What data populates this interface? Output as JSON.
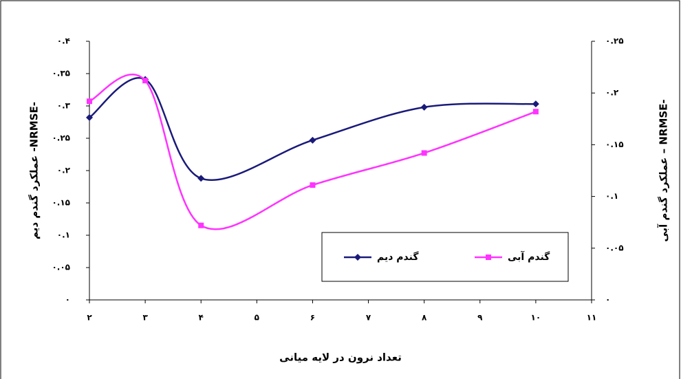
{
  "chart_data": {
    "type": "line",
    "x_label": "تعداد نرون در لایه میانی",
    "y_label": "عملکرد گندم دیم -NRMSE-",
    "y2_label": "عملکرد گندم آبی – NRMSE-",
    "x": [
      2,
      3,
      4,
      6,
      8,
      10
    ],
    "series": [
      {
        "name": "گندم دیم",
        "color": "#1a1a7a",
        "marker": "diamond",
        "values": [
          0.282,
          0.341,
          0.188,
          0.247,
          0.298,
          0.303
        ]
      },
      {
        "name": "گندم آبی",
        "color": "#ff33ff",
        "marker": "square",
        "axis": "y2",
        "values": [
          0.192,
          0.212,
          0.072,
          0.111,
          0.142,
          0.182
        ]
      }
    ],
    "xlim": [
      2,
      11
    ],
    "xticks": [
      {
        "value": 2,
        "label": "۲"
      },
      {
        "value": 3,
        "label": "۳"
      },
      {
        "value": 4,
        "label": "۴"
      },
      {
        "value": 5,
        "label": "۵"
      },
      {
        "value": 6,
        "label": "۶"
      },
      {
        "value": 7,
        "label": "۷"
      },
      {
        "value": 8,
        "label": "۸"
      },
      {
        "value": 9,
        "label": "۹"
      },
      {
        "value": 10,
        "label": "۱۰"
      },
      {
        "value": 11,
        "label": "۱۱"
      }
    ],
    "ylim": [
      0,
      0.4
    ],
    "yticks": [
      {
        "value": 0,
        "label": "۰"
      },
      {
        "value": 0.05,
        "label": "۰.۰۵"
      },
      {
        "value": 0.1,
        "label": "۰.۱"
      },
      {
        "value": 0.15,
        "label": "۰.۱۵"
      },
      {
        "value": 0.2,
        "label": "۰.۲"
      },
      {
        "value": 0.25,
        "label": "۰.۲۵"
      },
      {
        "value": 0.3,
        "label": "۰.۳"
      },
      {
        "value": 0.35,
        "label": "۰.۳۵"
      },
      {
        "value": 0.4,
        "label": "۰.۴"
      }
    ],
    "y2lim": [
      0,
      0.25
    ],
    "y2ticks": [
      {
        "value": 0,
        "label": "۰"
      },
      {
        "value": 0.05,
        "label": "۰.۰۵"
      },
      {
        "value": 0.1,
        "label": "۰.۱"
      },
      {
        "value": 0.15,
        "label": "۰.۱۵"
      },
      {
        "value": 0.2,
        "label": "۰.۲"
      },
      {
        "value": 0.25,
        "label": "۰.۲۵"
      }
    ],
    "smooth": true
  }
}
